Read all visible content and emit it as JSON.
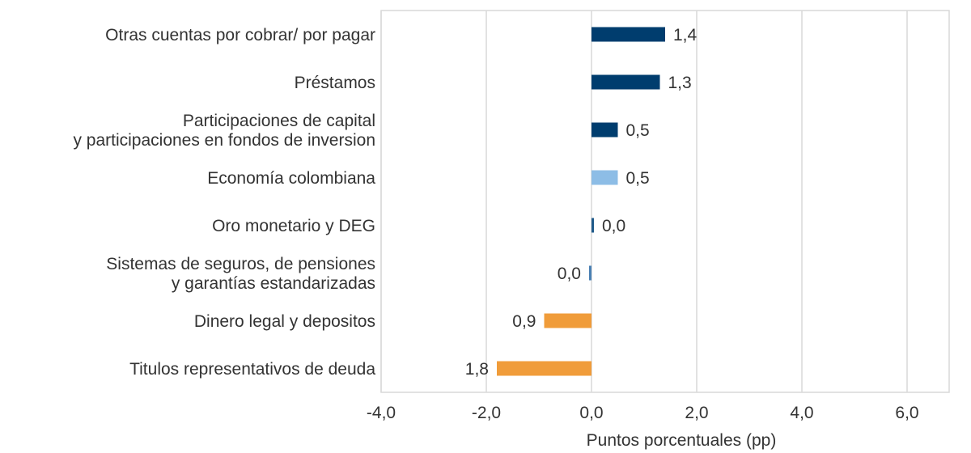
{
  "chart_data": {
    "type": "bar",
    "orientation": "horizontal",
    "title": "",
    "xlabel": "Puntos porcentuales (pp)",
    "ylabel": "",
    "xlim": [
      -4.0,
      6.8
    ],
    "xticks": [
      -4.0,
      -2.0,
      0.0,
      2.0,
      4.0,
      6.0
    ],
    "xtick_labels": [
      "-4,0",
      "-2,0",
      "0,0",
      "2,0",
      "4,0",
      "6,0"
    ],
    "grid": "vertical",
    "legend": "none",
    "categories": [
      [
        "Otras cuentas por cobrar/ por pagar"
      ],
      [
        "Préstamos"
      ],
      [
        "Participaciones de capital",
        "y participaciones en fondos de inversion"
      ],
      [
        "Economía colombiana"
      ],
      [
        "Oro monetario y DEG"
      ],
      [
        "Sistemas de seguros, de pensiones",
        "y garantías estandarizadas"
      ],
      [
        "Dinero legal y depositos"
      ],
      [
        "Titulos representativos de deuda"
      ]
    ],
    "values": [
      1.4,
      1.3,
      0.5,
      0.5,
      0.03,
      -0.03,
      -0.9,
      -1.8
    ],
    "data_labels": [
      "1,4",
      "1,3",
      "0,5",
      "0,5",
      "0,0",
      "0,0",
      "0,9",
      "1,8"
    ],
    "colors": [
      "#003d6e",
      "#003d6e",
      "#003d6e",
      "#8dbde6",
      "#1f5a8a",
      "#4a80b3",
      "#f09c3a",
      "#f09c3a"
    ]
  },
  "style": {
    "grid_color": "#d9d9d9",
    "text_color": "#333333"
  }
}
